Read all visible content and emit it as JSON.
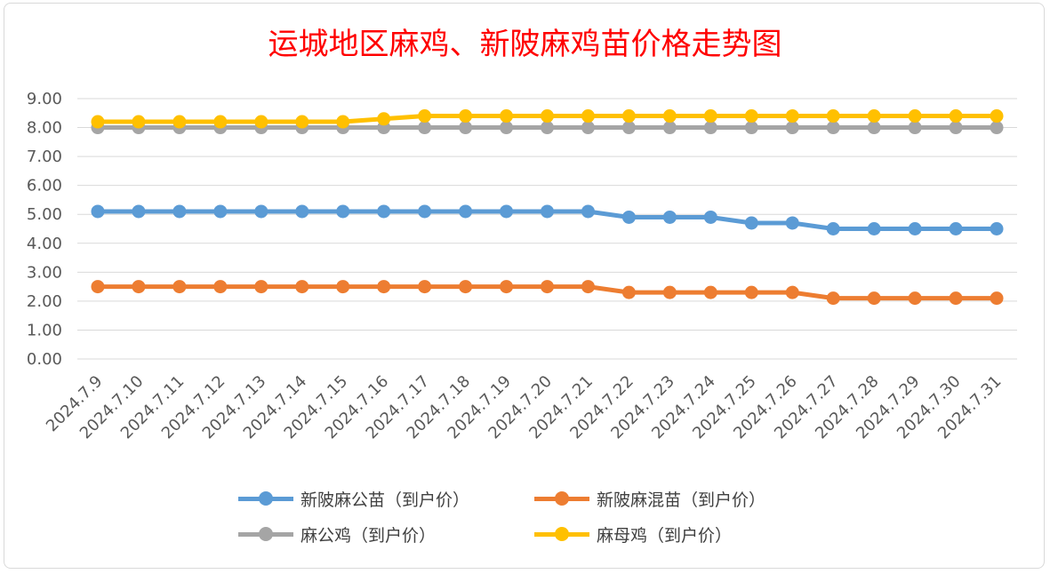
{
  "chart_data": {
    "type": "line",
    "title": "运城地区麻鸡、新陂麻鸡苗价格走势图",
    "xlabel": "",
    "ylabel": "",
    "ylim": [
      0,
      9
    ],
    "ytick_labels": [
      "0.00",
      "1.00",
      "2.00",
      "3.00",
      "4.00",
      "5.00",
      "6.00",
      "7.00",
      "8.00",
      "9.00"
    ],
    "grid": true,
    "legend_position": "bottom",
    "categories": [
      "2024.7.9",
      "2024.7.10",
      "2024.7.11",
      "2024.7.12",
      "2024.7.13",
      "2024.7.14",
      "2024.7.15",
      "2024.7.16",
      "2024.7.17",
      "2024.7.18",
      "2024.7.19",
      "2024.7.20",
      "2024.7.21",
      "2024.7.22",
      "2024.7.23",
      "2024.7.24",
      "2024.7.25",
      "2024.7.26",
      "2024.7.27",
      "2024.7.28",
      "2024.7.29",
      "2024.7.30",
      "2024.7.31"
    ],
    "series": [
      {
        "name": "新陂麻公苗（到户价）",
        "color": "#5b9bd5",
        "values": [
          5.1,
          5.1,
          5.1,
          5.1,
          5.1,
          5.1,
          5.1,
          5.1,
          5.1,
          5.1,
          5.1,
          5.1,
          5.1,
          4.9,
          4.9,
          4.9,
          4.7,
          4.7,
          4.5,
          4.5,
          4.5,
          4.5,
          4.5
        ]
      },
      {
        "name": "新陂麻混苗（到户价）",
        "color": "#ed7d31",
        "values": [
          2.5,
          2.5,
          2.5,
          2.5,
          2.5,
          2.5,
          2.5,
          2.5,
          2.5,
          2.5,
          2.5,
          2.5,
          2.5,
          2.3,
          2.3,
          2.3,
          2.3,
          2.3,
          2.1,
          2.1,
          2.1,
          2.1,
          2.1
        ]
      },
      {
        "name": "麻公鸡（到户价）",
        "color": "#a5a5a5",
        "values": [
          8,
          8,
          8,
          8,
          8,
          8,
          8,
          8,
          8,
          8,
          8,
          8,
          8,
          8,
          8,
          8,
          8,
          8,
          8,
          8,
          8,
          8,
          8
        ]
      },
      {
        "name": "麻母鸡（到户价）",
        "color": "#ffc000",
        "values": [
          8.2,
          8.2,
          8.2,
          8.2,
          8.2,
          8.2,
          8.2,
          8.3,
          8.4,
          8.4,
          8.4,
          8.4,
          8.4,
          8.4,
          8.4,
          8.4,
          8.4,
          8.4,
          8.4,
          8.4,
          8.4,
          8.4,
          8.4
        ]
      }
    ],
    "draw_order": [
      2,
      3,
      0,
      1
    ]
  }
}
